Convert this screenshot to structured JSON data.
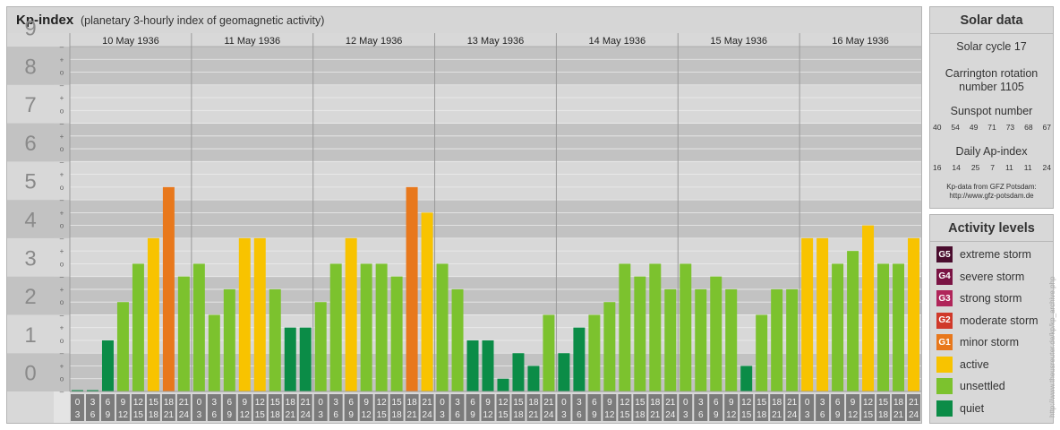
{
  "header": {
    "title": "Kp-index",
    "subtitle": "(planetary 3-hourly index of geomagnetic activity)"
  },
  "chart_data": {
    "type": "bar",
    "title": "Kp-index",
    "ylim": [
      0,
      9
    ],
    "y_major_labels": [
      "0",
      "1",
      "2",
      "3",
      "4",
      "5",
      "6",
      "7",
      "8",
      "9"
    ],
    "y_minor_labels": [
      "+",
      "o",
      "–"
    ],
    "days": [
      {
        "date": "10 May 1936",
        "kp": [
          0.0,
          0.0,
          1.333,
          2.333,
          3.333,
          4.0,
          5.333,
          3.0
        ]
      },
      {
        "date": "11 May 1936",
        "kp": [
          3.333,
          2.0,
          2.667,
          4.0,
          4.0,
          2.667,
          1.667,
          1.667
        ]
      },
      {
        "date": "12 May 1936",
        "kp": [
          2.333,
          3.333,
          4.0,
          3.333,
          3.333,
          3.0,
          5.333,
          4.667
        ]
      },
      {
        "date": "13 May 1936",
        "kp": [
          3.333,
          2.667,
          1.333,
          1.333,
          0.333,
          1.0,
          0.667,
          2.0
        ]
      },
      {
        "date": "14 May 1936",
        "kp": [
          1.0,
          1.667,
          2.0,
          2.333,
          3.333,
          3.0,
          3.333,
          2.667
        ]
      },
      {
        "date": "15 May 1936",
        "kp": [
          3.333,
          2.667,
          3.0,
          2.667,
          0.667,
          2.0,
          2.667,
          2.667
        ]
      },
      {
        "date": "16 May 1936",
        "kp": [
          4.0,
          4.0,
          3.333,
          3.667,
          4.333,
          3.333,
          3.333,
          4.0
        ]
      }
    ],
    "interval_labels": [
      [
        "0",
        "3"
      ],
      [
        "3",
        "6"
      ],
      [
        "6",
        "9"
      ],
      [
        "9",
        "12"
      ],
      [
        "12",
        "15"
      ],
      [
        "15",
        "18"
      ],
      [
        "18",
        "21"
      ],
      [
        "21",
        "24"
      ]
    ],
    "grid": true,
    "colors": {
      "quiet": "#0b8c47",
      "unsettled": "#7cc22e",
      "active": "#f8c300",
      "minor_storm": "#e8781c",
      "axis_text": "#8a8a8a",
      "band_dark": "#c2c2c2",
      "band_light": "#d8d8d8",
      "slot_bg": "#7b7b7b"
    }
  },
  "solar": {
    "title": "Solar data",
    "cycle": "Solar cycle 17",
    "carrington_1": "Carrington rotation",
    "carrington_2": "number 1105",
    "sunspot_title": "Sunspot number",
    "sunspot_values": [
      "40",
      "54",
      "49",
      "71",
      "73",
      "68",
      "67"
    ],
    "ap_title": "Daily Ap-index",
    "ap_values": [
      "16",
      "14",
      "25",
      "7",
      "11",
      "11",
      "24"
    ],
    "credit_1": "Kp-data from GFZ Potsdam:",
    "credit_2": "http://www.gfz-potsdam.de"
  },
  "activity": {
    "title": "Activity levels",
    "items": [
      {
        "code": "G5",
        "label": "extreme storm",
        "color": "#4a0d2e"
      },
      {
        "code": "G4",
        "label": "severe storm",
        "color": "#7a1444"
      },
      {
        "code": "G3",
        "label": "strong storm",
        "color": "#b0255a"
      },
      {
        "code": "G2",
        "label": "moderate storm",
        "color": "#d0392a"
      },
      {
        "code": "G1",
        "label": "minor storm",
        "color": "#e8781c"
      },
      {
        "code": "",
        "label": "active",
        "color": "#f8c300"
      },
      {
        "code": "",
        "label": "unsettled",
        "color": "#7cc22e"
      },
      {
        "code": "",
        "label": "quiet",
        "color": "#0b8c47"
      }
    ]
  },
  "footer_url": "http://www.theusreuter.de/kp/kp_archive.php"
}
